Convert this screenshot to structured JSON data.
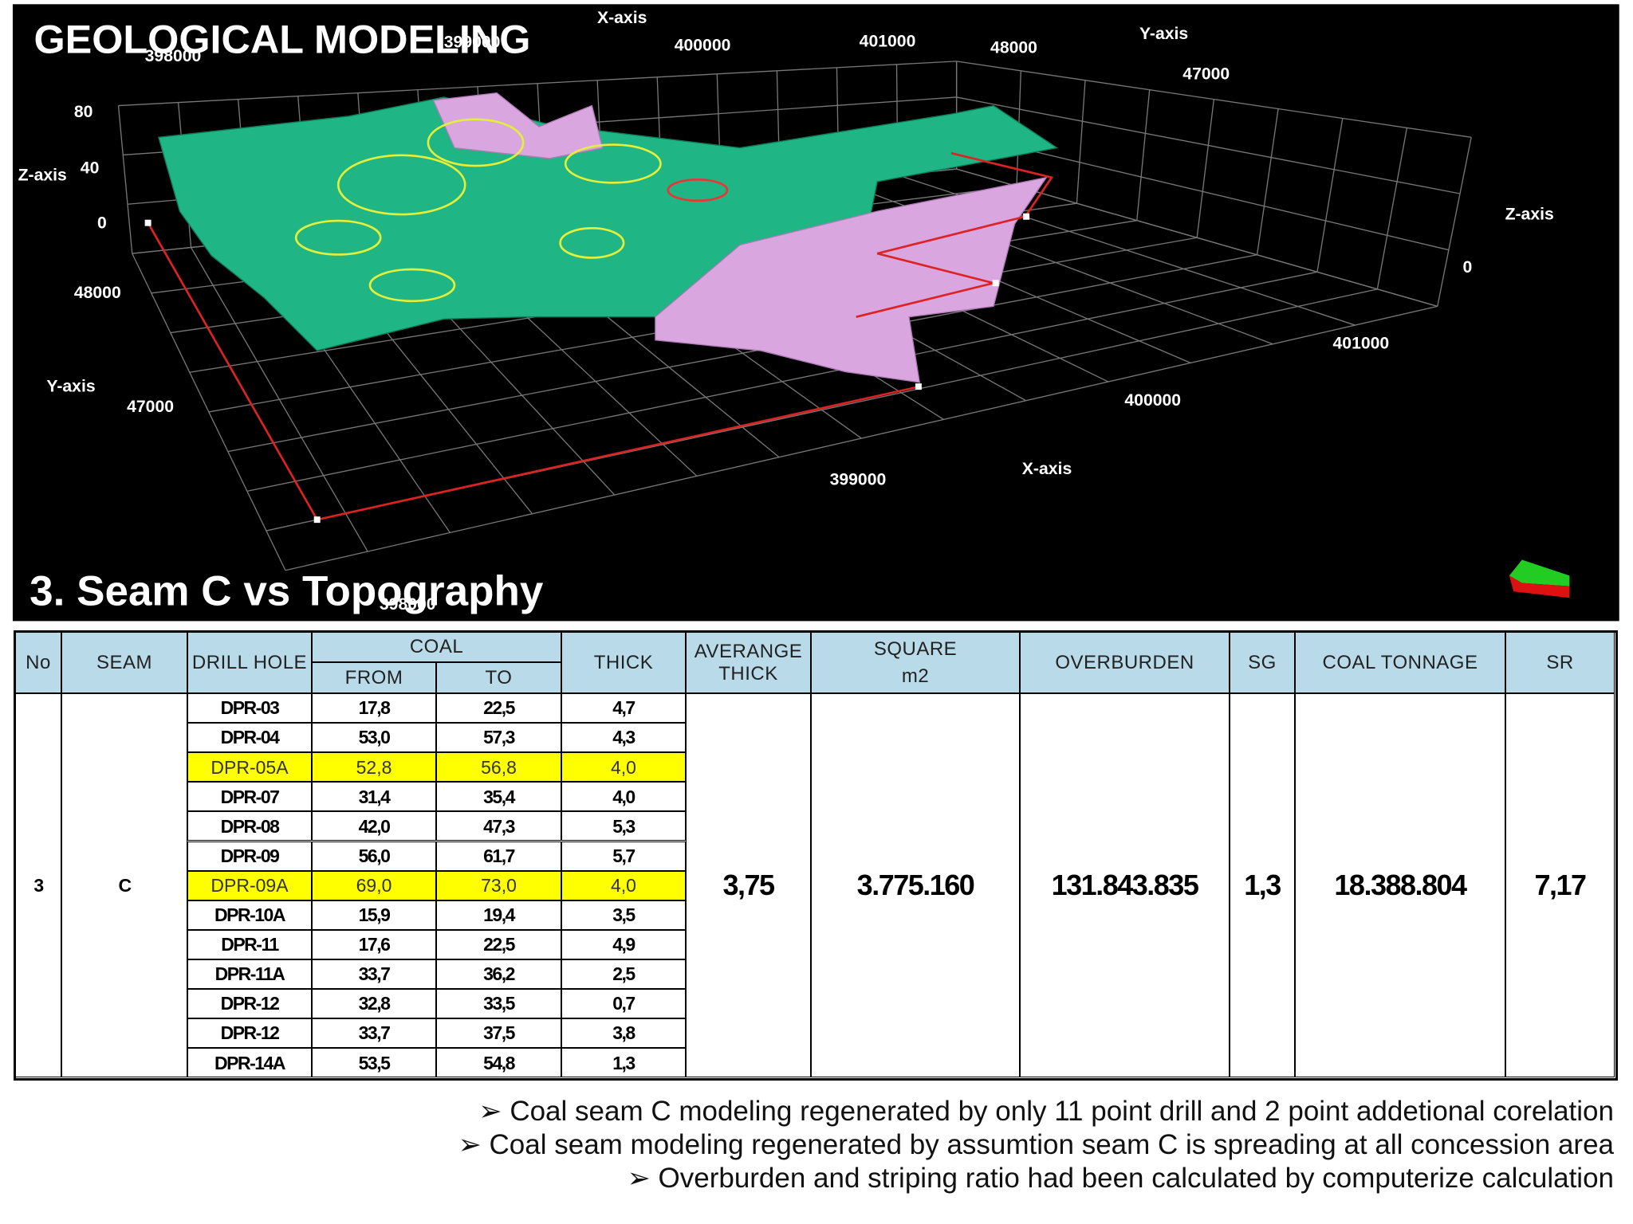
{
  "header": {
    "title": "GEOLOGICAL MODELING",
    "subtitle": "3. Seam C vs Topography"
  },
  "model_view": {
    "axis_labels": [
      "X-axis",
      "398000",
      "399000",
      "400000",
      "401000",
      "48000",
      "Y-axis",
      "47000",
      "80",
      "Z-axis",
      "40",
      "0",
      "48000",
      "Y-axis",
      "47000",
      "Z-axis",
      "0",
      "401000",
      "400000",
      "X-axis",
      "399000",
      "398000"
    ]
  },
  "table": {
    "headers": {
      "no": "No",
      "seam": "SEAM",
      "drill_hole": "DRILL HOLE",
      "coal": "COAL",
      "from": "FROM",
      "to": "TO",
      "thick": "THICK",
      "avg_thick": "AVERANGE THICK",
      "square": "SQUARE",
      "square_unit": "m2",
      "overburden": "OVERBURDEN",
      "sg": "SG",
      "tonnage": "COAL TONNAGE",
      "sr": "SR"
    },
    "rows": [
      {
        "drill_hole": "DPR-03",
        "from": "17,8",
        "to": "22,5",
        "thick": "4,7",
        "highlight": false
      },
      {
        "drill_hole": "DPR-04",
        "from": "53,0",
        "to": "57,3",
        "thick": "4,3",
        "highlight": false
      },
      {
        "drill_hole": "DPR-05A",
        "from": "52,8",
        "to": "56,8",
        "thick": "4,0",
        "highlight": true
      },
      {
        "drill_hole": "DPR-07",
        "from": "31,4",
        "to": "35,4",
        "thick": "4,0",
        "highlight": false
      },
      {
        "drill_hole": "DPR-08",
        "from": "42,0",
        "to": "47,3",
        "thick": "5,3",
        "highlight": false
      },
      {
        "drill_hole": "DPR-09",
        "from": "56,0",
        "to": "61,7",
        "thick": "5,7",
        "highlight": false
      },
      {
        "drill_hole": "DPR-09A",
        "from": "69,0",
        "to": "73,0",
        "thick": "4,0",
        "highlight": true
      },
      {
        "drill_hole": "DPR-10A",
        "from": "15,9",
        "to": "19,4",
        "thick": "3,5",
        "highlight": false
      },
      {
        "drill_hole": "DPR-11",
        "from": "17,6",
        "to": "22,5",
        "thick": "4,9",
        "highlight": false
      },
      {
        "drill_hole": "DPR-11A",
        "from": "33,7",
        "to": "36,2",
        "thick": "2,5",
        "highlight": false
      },
      {
        "drill_hole": "DPR-12",
        "from": "32,8",
        "to": "33,5",
        "thick": "0,7",
        "highlight": false
      },
      {
        "drill_hole": "DPR-12",
        "from": "33,7",
        "to": "37,5",
        "thick": "3,8",
        "highlight": false
      },
      {
        "drill_hole": "DPR-14A",
        "from": "53,5",
        "to": "54,8",
        "thick": "1,3",
        "highlight": false
      }
    ],
    "merged": {
      "no": "3",
      "seam": "C",
      "avg_thick": "3,75",
      "square": "3.775.160",
      "overburden": "131.843.835",
      "sg": "1,3",
      "tonnage": "18.388.804",
      "sr": "7,17"
    }
  },
  "bullets": [
    "➢ Coal seam C modeling regenerated by only 11 point drill and 2 point addetional corelation",
    "➢ Coal seam modeling regenerated by assumtion seam C is spreading at all concession area",
    "➢ Overburden and striping ratio had been calculated by computerize calculation"
  ]
}
